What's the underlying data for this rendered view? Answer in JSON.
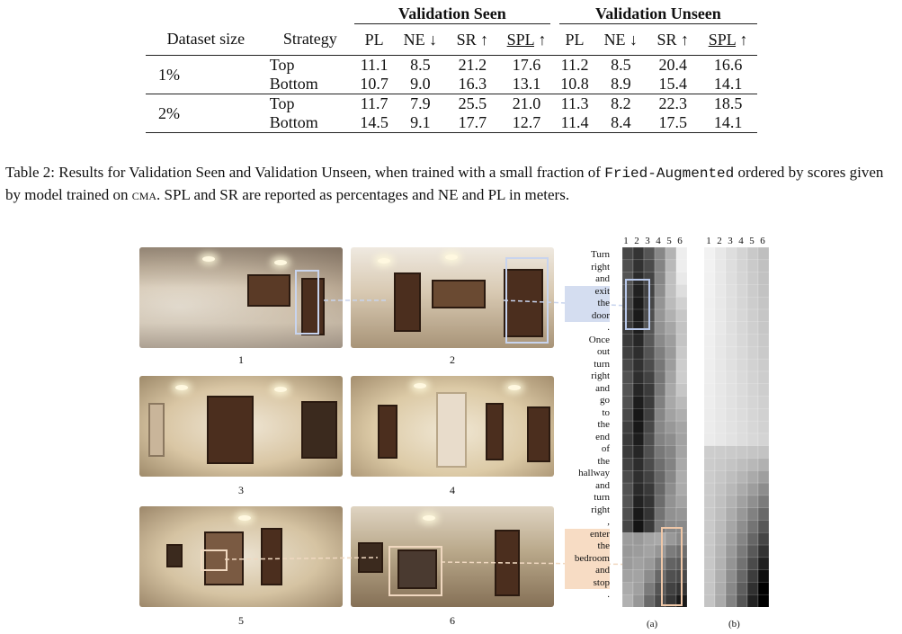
{
  "table": {
    "group_headers": [
      "Validation Seen",
      "Validation Unseen"
    ],
    "col_headers": [
      "Dataset size",
      "Strategy",
      "PL",
      "NE ↓",
      "SR ↑",
      "SPL",
      "↑",
      "PL",
      "NE ↓",
      "SR ↑",
      "SPL",
      "↑"
    ],
    "rows": [
      {
        "size": "1%",
        "strategy": "Top",
        "vals": [
          "11.1",
          "8.5",
          "21.2",
          "17.6",
          "11.2",
          "8.5",
          "20.4",
          "16.6"
        ]
      },
      {
        "size": "",
        "strategy": "Bottom",
        "vals": [
          "10.7",
          "9.0",
          "16.3",
          "13.1",
          "10.8",
          "8.9",
          "15.4",
          "14.1"
        ]
      },
      {
        "size": "2%",
        "strategy": "Top",
        "vals": [
          "11.7",
          "7.9",
          "25.5",
          "21.0",
          "11.3",
          "8.2",
          "22.3",
          "18.5"
        ]
      },
      {
        "size": "",
        "strategy": "Bottom",
        "vals": [
          "14.5",
          "9.1",
          "17.7",
          "12.7",
          "11.4",
          "8.4",
          "17.5",
          "14.1"
        ]
      }
    ]
  },
  "caption": {
    "part1": "Table 2: Results for Validation Seen and Validation Unseen, when trained with a small fraction of ",
    "mono": "Fried-Augmented",
    "part2": " ordered by scores given by model trained on ",
    "sc": "cma",
    "part3": ". SPL and SR are reported as percentages and NE and PL in meters."
  },
  "figure": {
    "panorama_labels": [
      "1",
      "2",
      "3",
      "4",
      "5",
      "6"
    ],
    "words": [
      "Turn",
      "right",
      "and",
      "exit",
      "the",
      "door",
      ".",
      "Once",
      "out",
      "turn",
      "right",
      "and",
      "go",
      "to",
      "the",
      "end",
      "of",
      "the",
      "hallway",
      "and",
      "turn",
      "right",
      ",",
      "enter",
      "the",
      "bedroom",
      "and",
      "stop",
      "."
    ],
    "heatmap_col_labels": [
      "1",
      "2",
      "3",
      "4",
      "5",
      "6"
    ],
    "heatmap_a_label": "(a)",
    "heatmap_b_label": "(b)",
    "colors": {
      "blue_highlight": "#d4ddf0",
      "peach_highlight": "#f7dcc4",
      "blue_box": "#b8c8ea",
      "peach_box": "#f0c8a8"
    }
  }
}
